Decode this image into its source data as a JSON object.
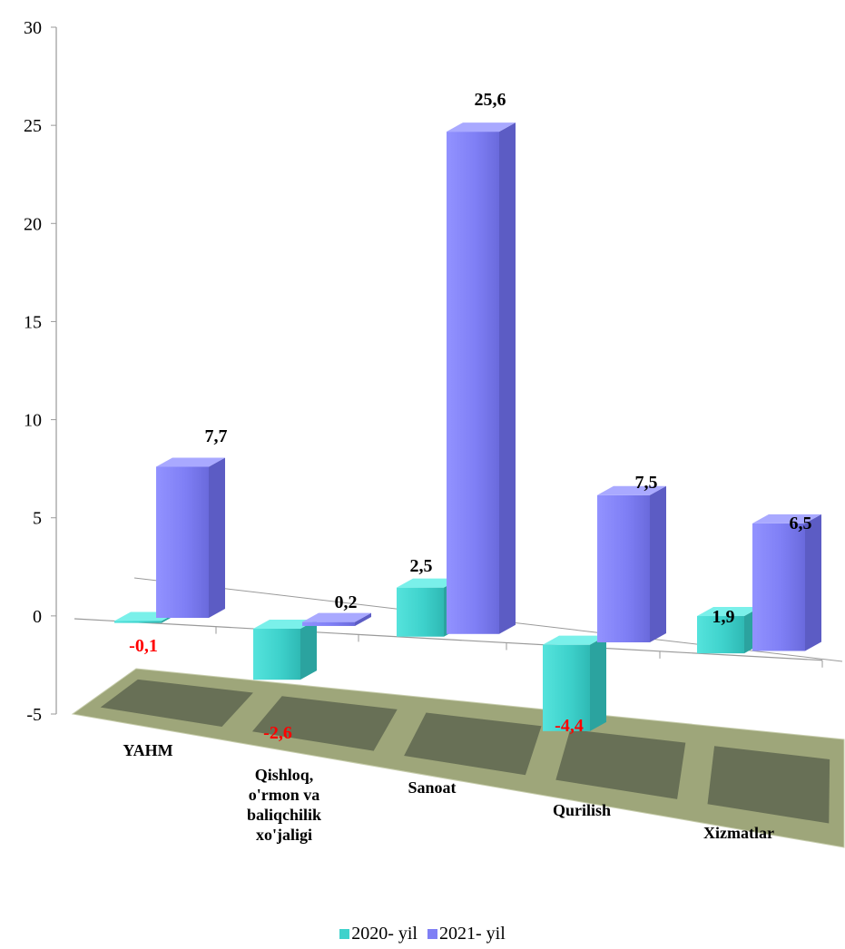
{
  "colors": {
    "series_2020": "#3ed2cc",
    "series_2021": "#7f7ff5",
    "negative_label": "#ff0000",
    "floor": "#9ea67a"
  },
  "chart_data": {
    "type": "bar",
    "categories": [
      "YAHM",
      "Qishloq,\no'rmon va\nbaliqchilik\nxo'jaligi",
      "Sanoat",
      "Qurilish",
      "Xizmatlar"
    ],
    "series": [
      {
        "name": "2020- yil",
        "values": [
          -0.1,
          -2.6,
          2.5,
          -4.4,
          1.9
        ],
        "labels": [
          "-0,1",
          "-2,6",
          "2,5",
          "-4,4",
          "1,9"
        ]
      },
      {
        "name": "2021- yil",
        "values": [
          7.7,
          0.2,
          25.6,
          7.5,
          6.5
        ],
        "labels": [
          "7,7",
          "0,2",
          "25,6",
          "7,5",
          "6,5"
        ]
      }
    ],
    "ylim": [
      -5,
      30
    ],
    "yticks": [
      "30",
      "25",
      "20",
      "15",
      "10",
      "5",
      "0",
      "-5"
    ],
    "xlabel": "",
    "ylabel": "",
    "legend": "bottom"
  }
}
